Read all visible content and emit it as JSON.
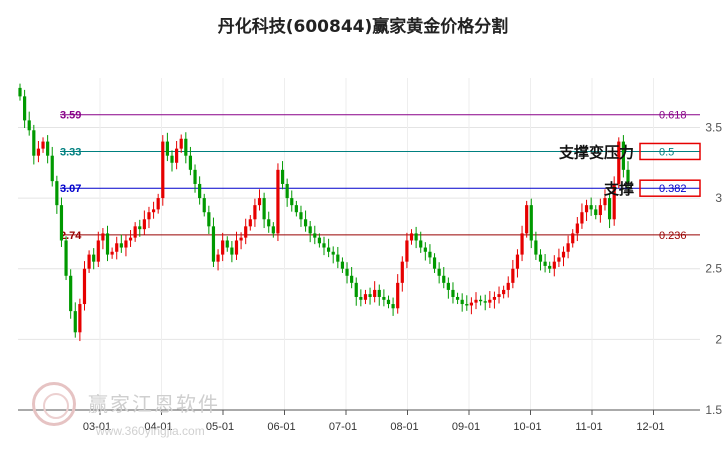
{
  "chart_data": {
    "type": "candlestick",
    "title": "丹化科技(600844)赢家黄金价格分割",
    "y_range": [
      1.5,
      3.85
    ],
    "y_ticks": [
      {
        "value": 3.5,
        "label": "3.5"
      },
      {
        "value": 3.0,
        "label": "3"
      },
      {
        "value": 2.5,
        "label": "2.5"
      },
      {
        "value": 2.0,
        "label": "2"
      },
      {
        "value": 1.5,
        "label": "1.5"
      }
    ],
    "x_ticks": [
      "03-01",
      "04-01",
      "05-01",
      "06-01",
      "07-01",
      "08-01",
      "09-01",
      "10-01",
      "11-01",
      "12-01"
    ],
    "grid": true,
    "levels": [
      {
        "price": 3.59,
        "price_label": "3.59",
        "ratio": "0.618",
        "color": "#880088"
      },
      {
        "price": 3.33,
        "price_label": "3.33",
        "ratio": "0.5",
        "color": "#008080"
      },
      {
        "price": 3.07,
        "price_label": "3.07",
        "ratio": "0.382",
        "color": "#0000cc"
      },
      {
        "price": 2.74,
        "price_label": "2.74",
        "ratio": "0.236",
        "color": "#990000"
      }
    ],
    "annotations": [
      {
        "text": "支撑变压力",
        "ratio": "0.5"
      },
      {
        "text": "支撑",
        "ratio": "0.382"
      }
    ],
    "closes": [
      3.72,
      3.55,
      3.48,
      3.3,
      3.35,
      3.4,
      3.3,
      3.12,
      2.95,
      2.7,
      2.45,
      2.2,
      2.05,
      2.25,
      2.5,
      2.6,
      2.55,
      2.7,
      2.75,
      2.6,
      2.62,
      2.68,
      2.65,
      2.7,
      2.72,
      2.8,
      2.78,
      2.85,
      2.9,
      2.92,
      3.0,
      3.4,
      3.3,
      3.25,
      3.35,
      3.42,
      3.3,
      3.2,
      3.1,
      3.0,
      2.9,
      2.8,
      2.55,
      2.6,
      2.7,
      2.65,
      2.6,
      2.7,
      2.72,
      2.8,
      2.85,
      2.95,
      3.0,
      2.85,
      2.8,
      2.75,
      3.2,
      3.1,
      3.0,
      2.95,
      2.9,
      2.85,
      2.8,
      2.75,
      2.72,
      2.68,
      2.65,
      2.62,
      2.6,
      2.55,
      2.5,
      2.45,
      2.4,
      2.3,
      2.28,
      2.32,
      2.3,
      2.35,
      2.3,
      2.28,
      2.25,
      2.22,
      2.4,
      2.55,
      2.7,
      2.75,
      2.7,
      2.65,
      2.62,
      2.58,
      2.5,
      2.45,
      2.4,
      2.35,
      2.3,
      2.28,
      2.25,
      2.24,
      2.26,
      2.28,
      2.27,
      2.26,
      2.28,
      2.3,
      2.32,
      2.35,
      2.4,
      2.5,
      2.6,
      2.75,
      2.95,
      2.7,
      2.6,
      2.55,
      2.52,
      2.5,
      2.55,
      2.58,
      2.62,
      2.68,
      2.75,
      2.82,
      2.9,
      2.95,
      2.92,
      2.88,
      2.95,
      3.0,
      2.85,
      3.1,
      3.4,
      3.2,
      3.1
    ]
  }
}
